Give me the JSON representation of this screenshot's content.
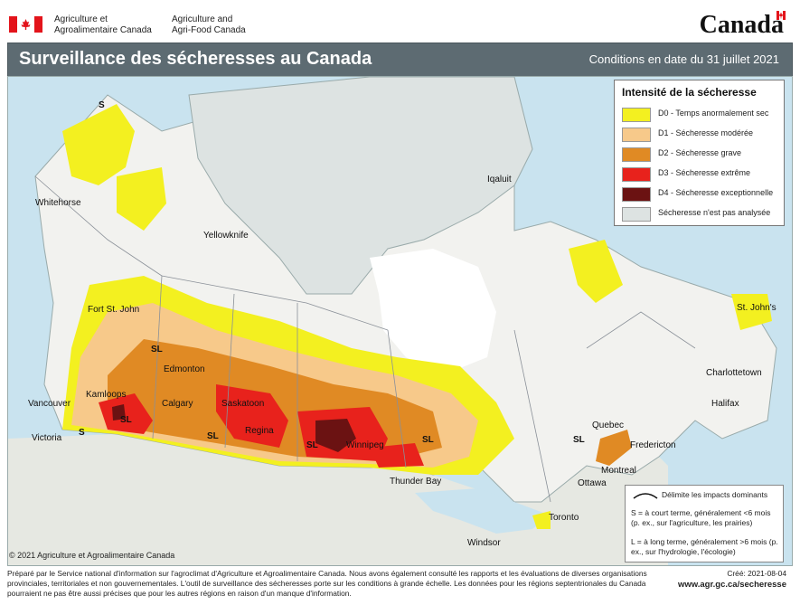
{
  "header": {
    "dept_fr_line1": "Agriculture et",
    "dept_fr_line2": "Agroalimentaire Canada",
    "dept_en_line1": "Agriculture and",
    "dept_en_line2": "Agri-Food Canada",
    "wordmark": "Canada"
  },
  "title": {
    "main": "Surveillance des sécheresses au Canada",
    "date": "Conditions en date du 31 juillet 2021"
  },
  "legend": {
    "title": "Intensité de la sécheresse",
    "items": [
      {
        "label": "D0 - Temps anormalement sec",
        "color": "#f3f020"
      },
      {
        "label": "D1 - Sécheresse modérée",
        "color": "#f7c98a"
      },
      {
        "label": "D2 - Sécheresse grave",
        "color": "#e08a24"
      },
      {
        "label": "D3 - Sécheresse extrême",
        "color": "#e8221c"
      },
      {
        "label": "D4 - Sécheresse exceptionnelle",
        "color": "#6b1212"
      },
      {
        "label": "Sécheresse n'est pas analysée",
        "color": "#dde3e2"
      }
    ]
  },
  "impacts_note": {
    "line": "Délimite les impacts dominants",
    "short_term": "S = à court terme, généralement <6 mois (p. ex., sur l'agriculture, les prairies)",
    "long_term": "L = à long terme, généralement >6 mois (p. ex., sur l'hydrologie, l'écologie)"
  },
  "cities": {
    "whitehorse": "Whitehorse",
    "yellowknife": "Yellowknife",
    "iqaluit": "Iqaluit",
    "fort_st_john": "Fort St. John",
    "edmonton": "Edmonton",
    "kamloops": "Kamloops",
    "vancouver": "Vancouver",
    "victoria": "Victoria",
    "calgary": "Calgary",
    "saskatoon": "Saskatoon",
    "regina": "Regina",
    "winnipeg": "Winnipeg",
    "thunder_bay": "Thunder Bay",
    "windsor": "Windsor",
    "toronto": "Toronto",
    "ottawa": "Ottawa",
    "montreal": "Montreal",
    "quebec": "Quebec",
    "fredericton": "Fredericton",
    "halifax": "Halifax",
    "charlottetown": "Charlottetown",
    "st_johns": "St. John's"
  },
  "impact_labels": {
    "s_yukon": "S",
    "sl_alberta": "SL",
    "sl_bc": "SL",
    "s_victoria": "S",
    "sl_calgary": "SL",
    "sl_manitoba": "SL",
    "sl_ontario": "SL",
    "sl_quebec": "SL"
  },
  "copyright": "© 2021 Agriculture et Agroalimentaire Canada",
  "footer": {
    "text": "Préparé par le Service national d'information sur l'agroclimat d'Agriculture et Agroalimentaire Canada. Nous avons également consulté les rapports et les évaluations de diverses organisations provinciales, territoriales et non gouvernementales. L'outil de surveillance des sécheresses porte sur les conditions à grande échelle. Les données pour les régions septentrionales du Canada pourraient ne pas être aussi précises que pour les autres régions en raison d'un manque d'information.",
    "created": "Créé: 2021-08-04",
    "url": "www.agr.gc.ca/secheresse"
  }
}
